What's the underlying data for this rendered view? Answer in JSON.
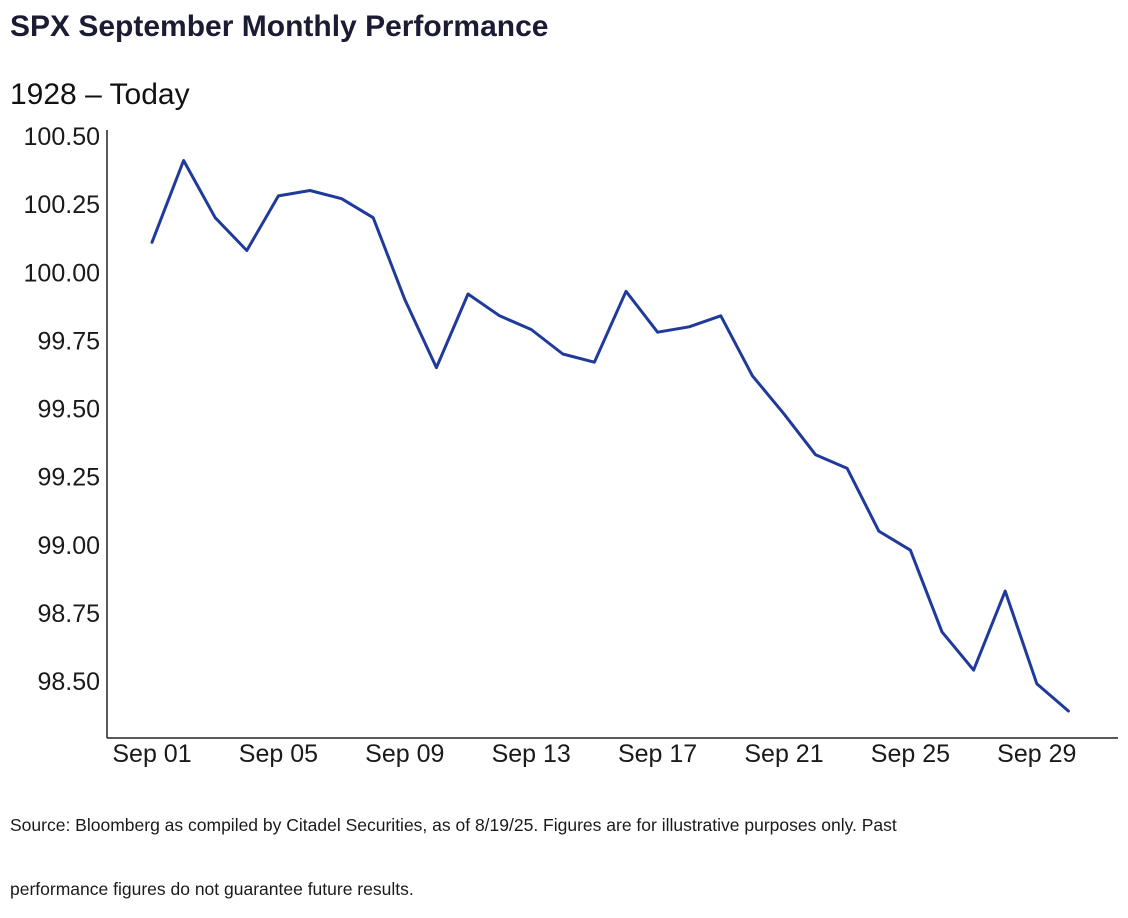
{
  "title": "SPX September Monthly Performance",
  "subtitle": "1928 – Today",
  "source_line1": "Source: Bloomberg as compiled by Citadel Securities, as of 8/19/25. Figures are for illustrative purposes only. Past",
  "source_line2": "performance figures do not guarantee future results.",
  "colors": {
    "line": "#1f3a9b",
    "axis": "#222222",
    "text": "#1a1a1a"
  },
  "chart_data": {
    "type": "line",
    "title": "SPX September Monthly Performance",
    "subtitle": "1928 – Today",
    "xlabel": "",
    "ylabel": "",
    "x": [
      "Sep 01",
      "Sep 02",
      "Sep 03",
      "Sep 04",
      "Sep 05",
      "Sep 06",
      "Sep 07",
      "Sep 08",
      "Sep 09",
      "Sep 10",
      "Sep 11",
      "Sep 12",
      "Sep 13",
      "Sep 14",
      "Sep 15",
      "Sep 16",
      "Sep 17",
      "Sep 18",
      "Sep 19",
      "Sep 20",
      "Sep 21",
      "Sep 22",
      "Sep 23",
      "Sep 24",
      "Sep 25",
      "Sep 26",
      "Sep 27",
      "Sep 28",
      "Sep 29",
      "Sep 30"
    ],
    "series": [
      {
        "values": [
          100.11,
          100.41,
          100.2,
          100.08,
          100.28,
          100.3,
          100.27,
          100.2,
          99.9,
          99.65,
          99.92,
          99.84,
          99.79,
          99.7,
          99.67,
          99.93,
          99.78,
          99.8,
          99.84,
          99.62,
          99.48,
          99.33,
          99.28,
          99.05,
          98.98,
          98.68,
          98.54,
          98.83,
          98.49,
          98.39
        ]
      }
    ],
    "x_ticks": [
      "Sep 01",
      "Sep 05",
      "Sep 09",
      "Sep 13",
      "Sep 17",
      "Sep 21",
      "Sep 25",
      "Sep 29"
    ],
    "y_ticks": [
      "100.50",
      "100.25",
      "100.00",
      "99.75",
      "99.50",
      "99.25",
      "99.00",
      "98.75",
      "98.50"
    ],
    "ylim": [
      98.34,
      100.5
    ],
    "grid": false,
    "legend": "none"
  }
}
